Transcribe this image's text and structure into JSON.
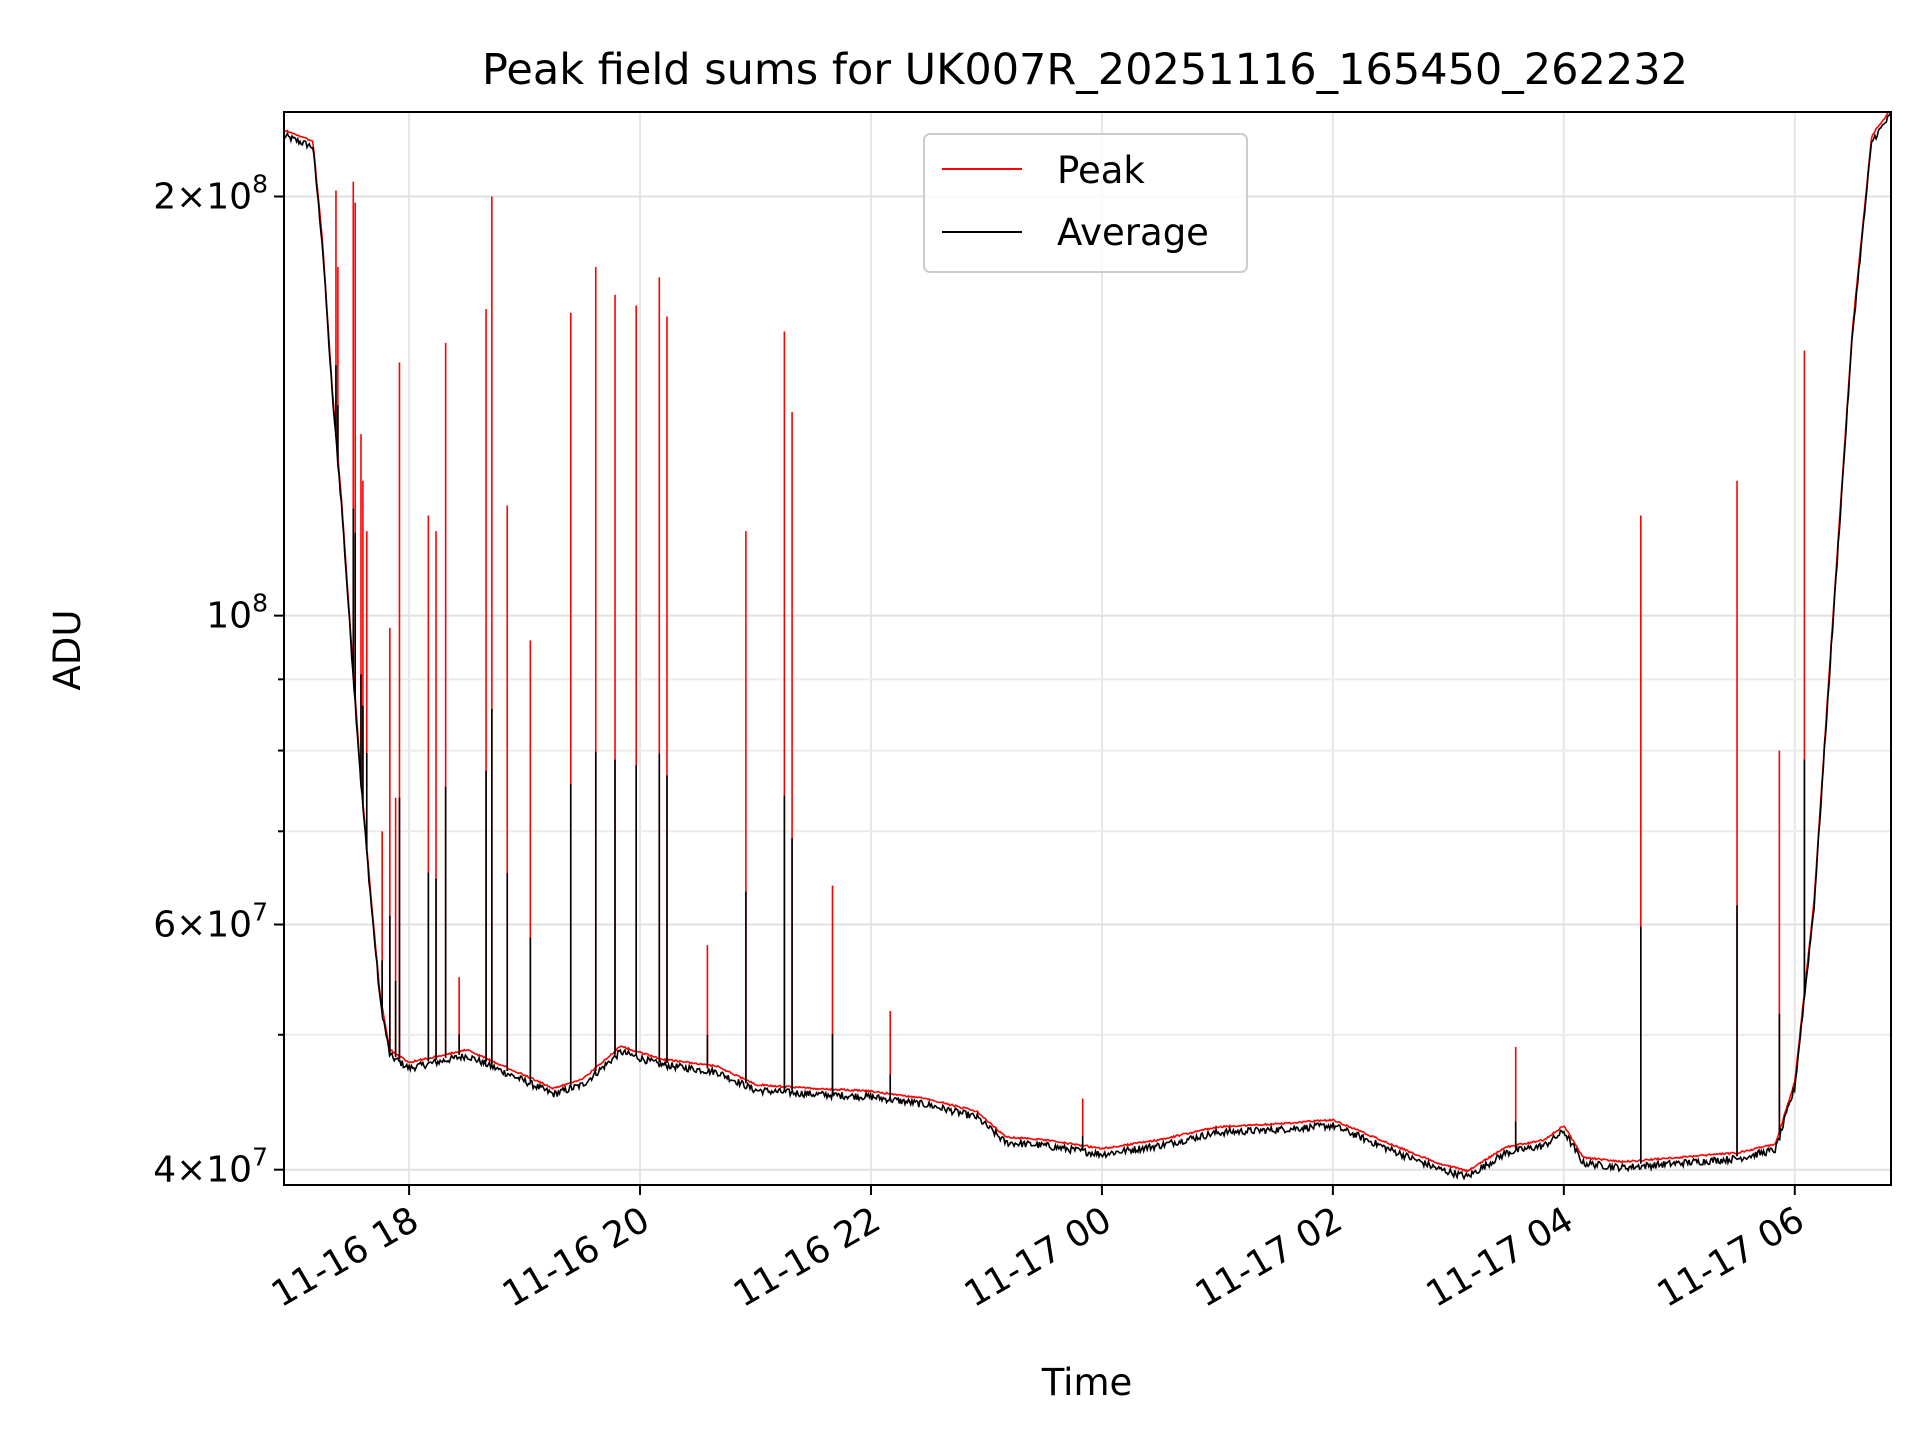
{
  "chart_data": {
    "type": "line",
    "title": "Peak field sums for UK007R_20251116_165450_262232",
    "xlabel": "Time",
    "ylabel": "ADU",
    "y_scale": "log",
    "ylim": [
      39000000,
      230000000
    ],
    "xlim": [
      "2025-11-16 16:55",
      "2025-11-17 06:50"
    ],
    "grid": true,
    "legend_position": "upper center",
    "x_ticks": [
      {
        "t": "2025-11-16 18:00",
        "label": "11-16 18"
      },
      {
        "t": "2025-11-16 20:00",
        "label": "11-16 20"
      },
      {
        "t": "2025-11-16 22:00",
        "label": "11-16 22"
      },
      {
        "t": "2025-11-17 00:00",
        "label": "11-17 00"
      },
      {
        "t": "2025-11-17 02:00",
        "label": "11-17 02"
      },
      {
        "t": "2025-11-17 04:00",
        "label": "11-17 04"
      },
      {
        "t": "2025-11-17 06:00",
        "label": "11-17 06"
      }
    ],
    "y_ticks_major": [
      {
        "v": 40000000,
        "base": "4",
        "exp": "7"
      },
      {
        "v": 60000000,
        "base": "6",
        "exp": "7"
      },
      {
        "v": 100000000,
        "base": "",
        "exp": "8"
      },
      {
        "v": 200000000,
        "base": "2",
        "exp": "8"
      }
    ],
    "y_ticks_minor": [
      50000000,
      70000000,
      80000000,
      90000000
    ],
    "series": [
      {
        "name": "Average",
        "color": "#000000",
        "points": [
          [
            "2025-11-16 16:55",
            222000000
          ],
          [
            "2025-11-16 17:10",
            218000000
          ],
          [
            "2025-11-16 17:15",
            185000000
          ],
          [
            "2025-11-16 17:20",
            145000000
          ],
          [
            "2025-11-16 17:25",
            120000000
          ],
          [
            "2025-11-16 17:30",
            95000000
          ],
          [
            "2025-11-16 17:35",
            76000000
          ],
          [
            "2025-11-16 17:40",
            63000000
          ],
          [
            "2025-11-16 17:45",
            53000000
          ],
          [
            "2025-11-16 17:50",
            48500000
          ],
          [
            "2025-11-16 18:00",
            47500000
          ],
          [
            "2025-11-16 18:30",
            48500000
          ],
          [
            "2025-11-16 19:00",
            46500000
          ],
          [
            "2025-11-16 19:15",
            45500000
          ],
          [
            "2025-11-16 19:30",
            46200000
          ],
          [
            "2025-11-16 19:50",
            48800000
          ],
          [
            "2025-11-16 20:10",
            47800000
          ],
          [
            "2025-11-16 20:40",
            47200000
          ],
          [
            "2025-11-16 21:00",
            45800000
          ],
          [
            "2025-11-16 21:30",
            45500000
          ],
          [
            "2025-11-16 22:00",
            45300000
          ],
          [
            "2025-11-16 22:30",
            44700000
          ],
          [
            "2025-11-16 22:55",
            43800000
          ],
          [
            "2025-11-16 23:10",
            42000000
          ],
          [
            "2025-11-16 23:30",
            41800000
          ],
          [
            "2025-11-17 00:00",
            41200000
          ],
          [
            "2025-11-17 00:30",
            41800000
          ],
          [
            "2025-11-17 01:00",
            42700000
          ],
          [
            "2025-11-17 01:30",
            42900000
          ],
          [
            "2025-11-17 02:00",
            43200000
          ],
          [
            "2025-11-17 02:30",
            41500000
          ],
          [
            "2025-11-17 02:55",
            40200000
          ],
          [
            "2025-11-17 03:10",
            39700000
          ],
          [
            "2025-11-17 03:30",
            41300000
          ],
          [
            "2025-11-17 03:50",
            41800000
          ],
          [
            "2025-11-17 04:00",
            42800000
          ],
          [
            "2025-11-17 04:10",
            40600000
          ],
          [
            "2025-11-17 04:30",
            40300000
          ],
          [
            "2025-11-17 05:00",
            40600000
          ],
          [
            "2025-11-17 05:30",
            40900000
          ],
          [
            "2025-11-17 05:50",
            41500000
          ],
          [
            "2025-11-17 06:00",
            46000000
          ],
          [
            "2025-11-17 06:10",
            62000000
          ],
          [
            "2025-11-17 06:20",
            100000000
          ],
          [
            "2025-11-17 06:30",
            160000000
          ],
          [
            "2025-11-17 06:40",
            220000000
          ],
          [
            "2025-11-17 06:50",
            230000000
          ]
        ]
      },
      {
        "name": "Peak",
        "color": "#ff0000",
        "spikes": [
          [
            "2025-11-16 17:22",
            202000000
          ],
          [
            "2025-11-16 17:23",
            178000000
          ],
          [
            "2025-11-16 17:31",
            205000000
          ],
          [
            "2025-11-16 17:32",
            198000000
          ],
          [
            "2025-11-16 17:35",
            135000000
          ],
          [
            "2025-11-16 17:36",
            125000000
          ],
          [
            "2025-11-16 17:38",
            115000000
          ],
          [
            "2025-11-16 17:46",
            70000000
          ],
          [
            "2025-11-16 17:50",
            98000000
          ],
          [
            "2025-11-16 17:53",
            74000000
          ],
          [
            "2025-11-16 17:55",
            152000000
          ],
          [
            "2025-11-16 18:10",
            118000000
          ],
          [
            "2025-11-16 18:14",
            115000000
          ],
          [
            "2025-11-16 18:19",
            157000000
          ],
          [
            "2025-11-16 18:26",
            55000000
          ],
          [
            "2025-11-16 18:40",
            166000000
          ],
          [
            "2025-11-16 18:43",
            200000000
          ],
          [
            "2025-11-16 18:51",
            120000000
          ],
          [
            "2025-11-16 19:03",
            96000000
          ],
          [
            "2025-11-16 19:24",
            165000000
          ],
          [
            "2025-11-16 19:37",
            178000000
          ],
          [
            "2025-11-16 19:47",
            170000000
          ],
          [
            "2025-11-16 19:58",
            167000000
          ],
          [
            "2025-11-16 20:10",
            175000000
          ],
          [
            "2025-11-16 20:14",
            164000000
          ],
          [
            "2025-11-16 20:35",
            58000000
          ],
          [
            "2025-11-16 20:55",
            115000000
          ],
          [
            "2025-11-16 21:15",
            160000000
          ],
          [
            "2025-11-16 21:19",
            140000000
          ],
          [
            "2025-11-16 21:40",
            64000000
          ],
          [
            "2025-11-16 22:10",
            52000000
          ],
          [
            "2025-11-16 23:50",
            45000000
          ],
          [
            "2025-11-17 03:35",
            49000000
          ],
          [
            "2025-11-17 04:40",
            118000000
          ],
          [
            "2025-11-17 05:30",
            125000000
          ],
          [
            "2025-11-17 05:52",
            80000000
          ],
          [
            "2025-11-17 06:05",
            155000000
          ]
        ]
      }
    ]
  }
}
